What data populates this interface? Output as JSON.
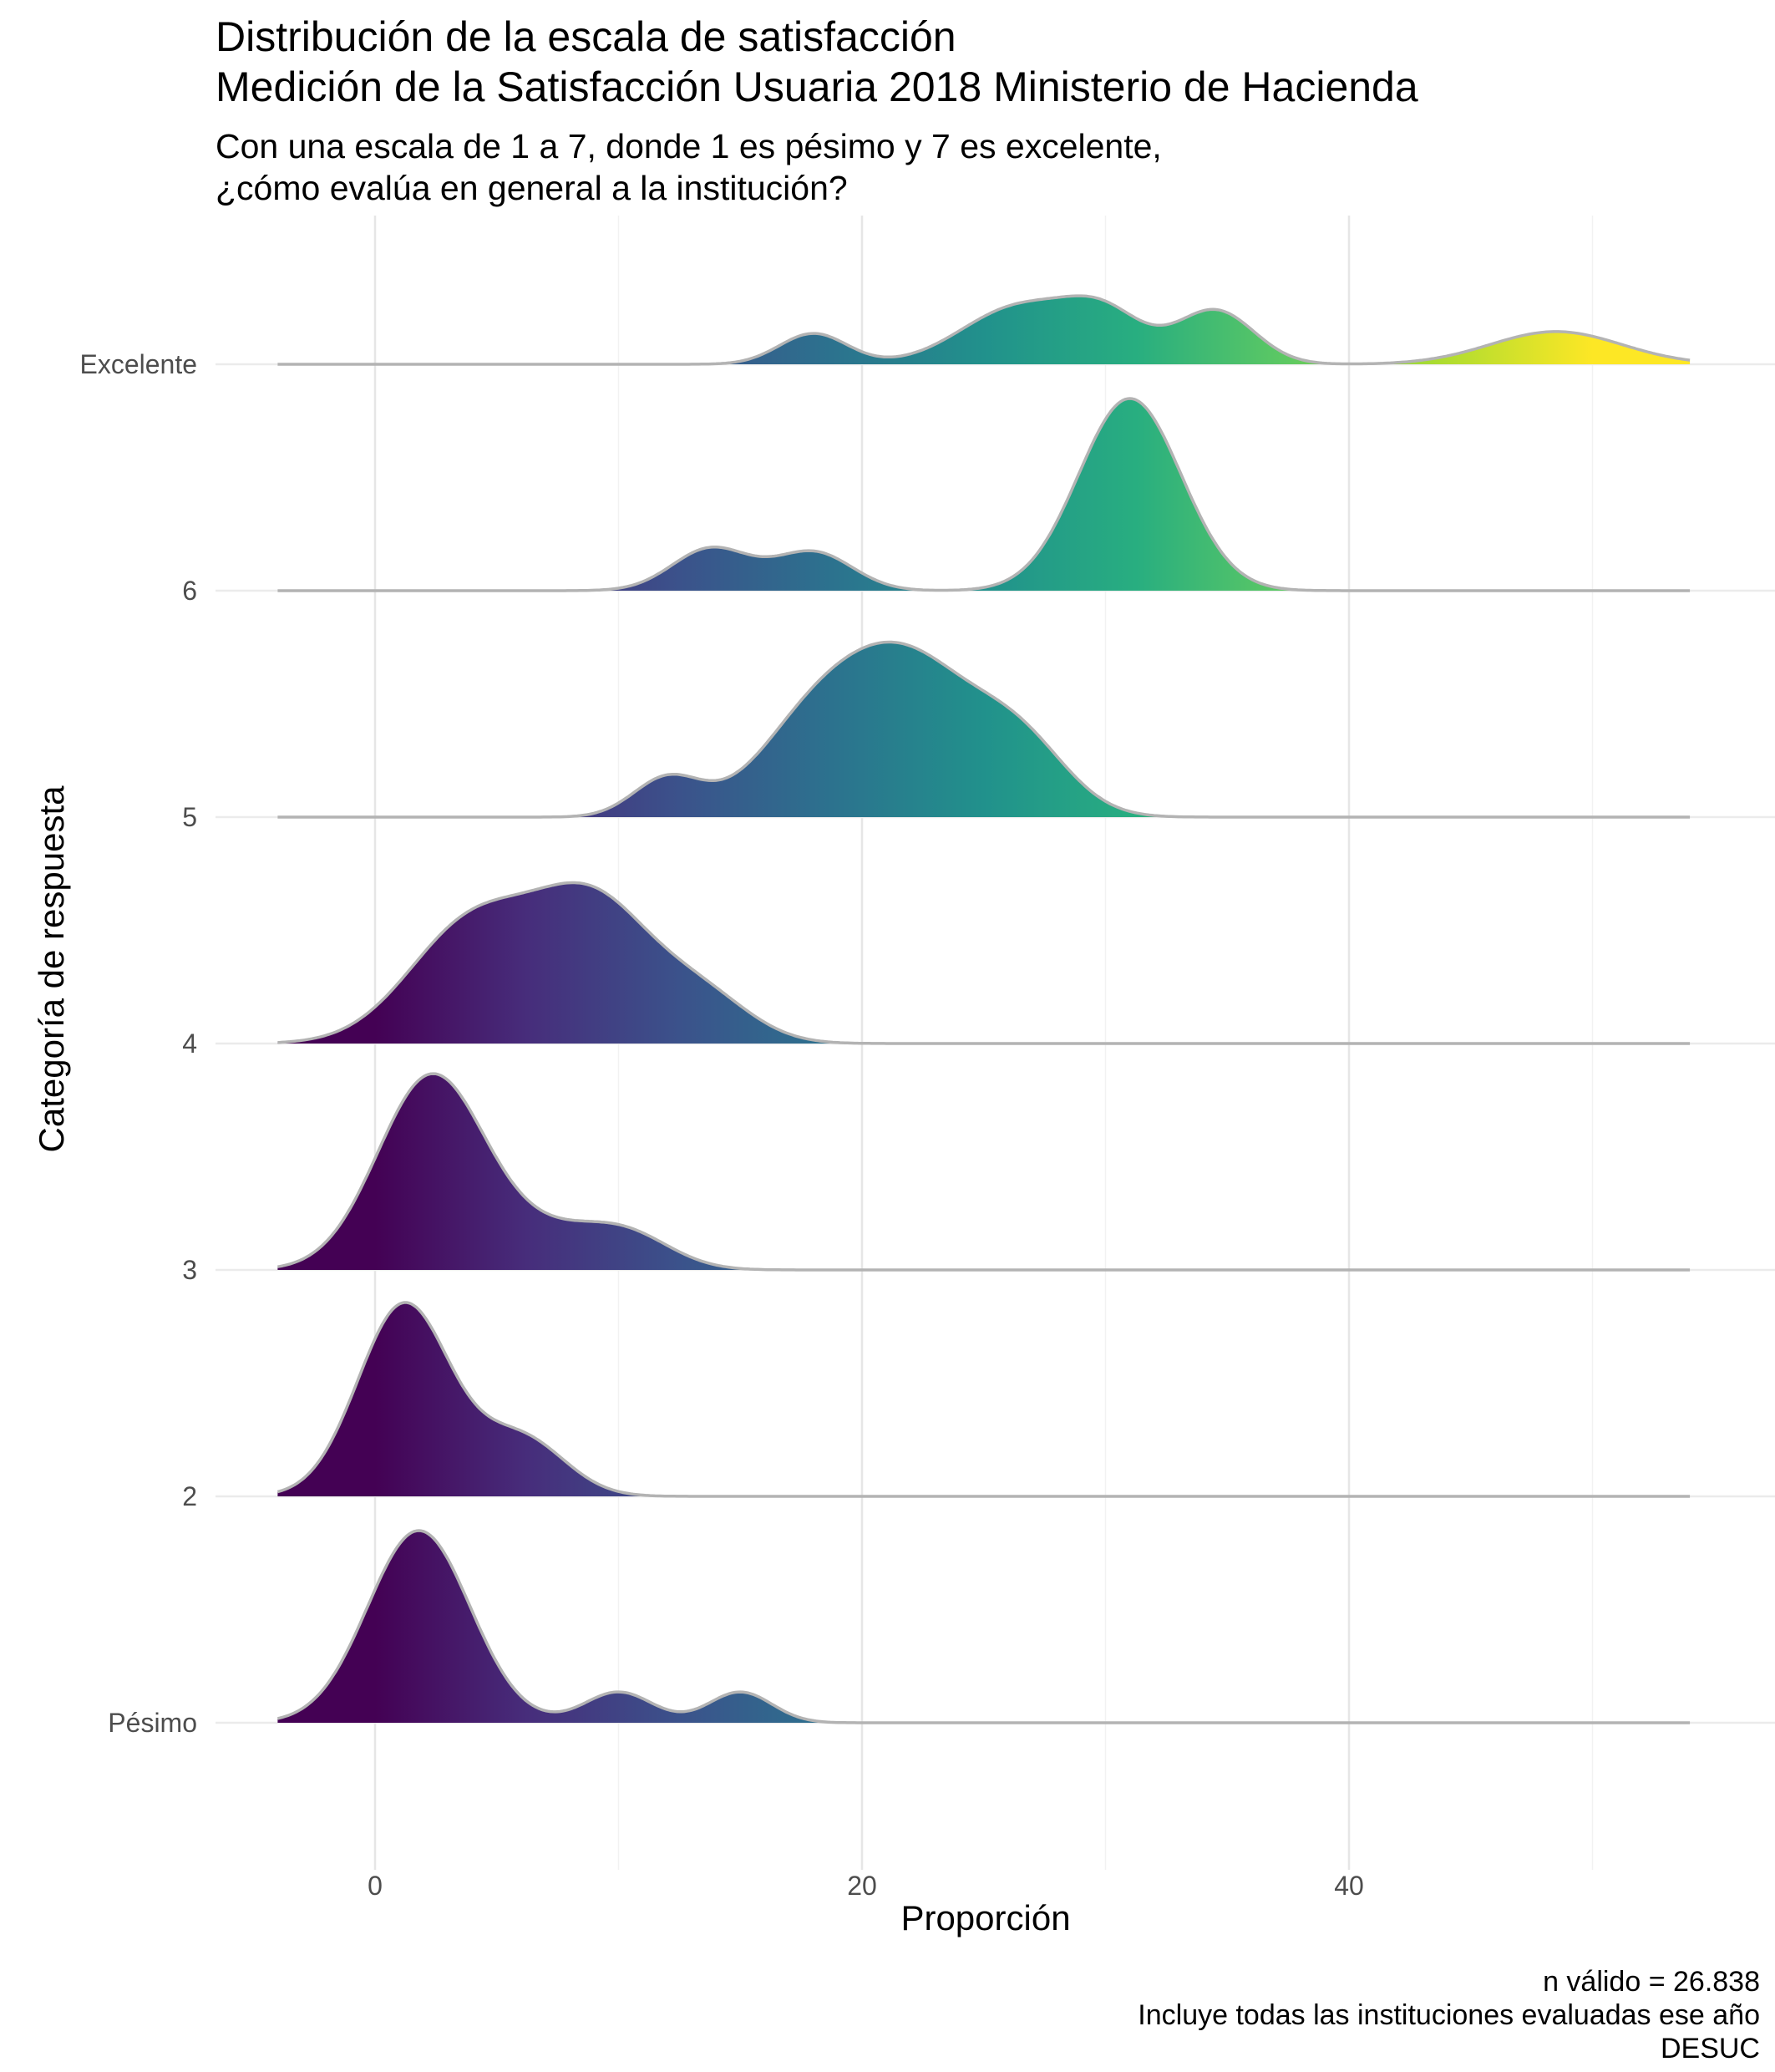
{
  "title_line1": "Distribución de la escala de satisfacción",
  "title_line2": "Medición de la Satisfacción Usuaria 2018 Ministerio de Hacienda",
  "subtitle_line1": "Con una escala de 1 a 7, donde 1 es pésimo y 7 es excelente,",
  "subtitle_line2": "¿cómo evalúa en general a la institución?",
  "caption_line1": "n válido = 26.838",
  "caption_line2": "Incluye todas las instituciones evaluadas ese año",
  "caption_line3": "DESUC",
  "chart_data": {
    "type": "ridgeline",
    "xlabel": "Proporción",
    "ylabel": "Categoría de respuesta",
    "xlim": [
      -7,
      57
    ],
    "x_ticks": [
      0,
      20,
      40
    ],
    "grid": true,
    "categories": [
      "Pésimo",
      "2",
      "3",
      "4",
      "5",
      "6",
      "Excelente"
    ],
    "color_scale": "viridis",
    "color_range": [
      0,
      50
    ],
    "density_support": [
      -4,
      54
    ],
    "series": [
      {
        "name": "Pésimo",
        "components": [
          [
            1.8,
            2.1,
            1.0
          ],
          [
            10,
            1.4,
            0.16
          ],
          [
            15,
            1.3,
            0.16
          ]
        ]
      },
      {
        "name": "2",
        "components": [
          [
            1.2,
            1.9,
            1.0
          ],
          [
            6.0,
            1.8,
            0.3
          ]
        ]
      },
      {
        "name": "3",
        "components": [
          [
            2.3,
            2.2,
            1.0
          ],
          [
            7.5,
            2.5,
            0.18
          ],
          [
            10.5,
            1.8,
            0.13
          ]
        ]
      },
      {
        "name": "4",
        "components": [
          [
            4.0,
            2.6,
            0.62
          ],
          [
            9.0,
            2.4,
            0.7
          ],
          [
            13.5,
            2.0,
            0.22
          ]
        ]
      },
      {
        "name": "5",
        "components": [
          [
            12.0,
            1.4,
            0.2
          ],
          [
            18.0,
            2.4,
            0.45
          ],
          [
            22.0,
            2.6,
            0.75
          ],
          [
            26.5,
            2.0,
            0.35
          ]
        ]
      },
      {
        "name": "6",
        "components": [
          [
            13.8,
            1.6,
            0.22
          ],
          [
            18.0,
            1.6,
            0.2
          ],
          [
            31.0,
            2.1,
            1.0
          ]
        ]
      },
      {
        "name": "Excelente",
        "components": [
          [
            18.0,
            1.4,
            0.16
          ],
          [
            26.5,
            2.4,
            0.3
          ],
          [
            30.0,
            1.6,
            0.22
          ],
          [
            34.5,
            1.6,
            0.28
          ],
          [
            48.5,
            2.7,
            0.17
          ]
        ]
      }
    ]
  }
}
